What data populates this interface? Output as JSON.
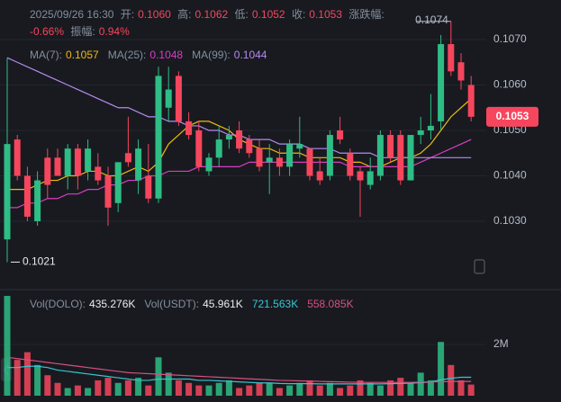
{
  "chart_data": {
    "type": "candlestick",
    "header": {
      "datetime": "2025/09/26 16:30",
      "fields": [
        {
          "label": "开:",
          "value": "0.1060"
        },
        {
          "label": "高:",
          "value": "0.1062"
        },
        {
          "label": "低:",
          "value": "0.1052"
        },
        {
          "label": "收:",
          "value": "0.1053"
        },
        {
          "label": "涨跌幅:",
          "value": "-0.66%"
        },
        {
          "label": "振幅:",
          "value": "0.94%"
        }
      ]
    },
    "ylim": [
      0.1016,
      0.1075
    ],
    "yticks": [
      {
        "value": 0.103,
        "label": "0.1030"
      },
      {
        "value": 0.104,
        "label": "0.1040"
      },
      {
        "value": 0.105,
        "label": "0.1050"
      },
      {
        "value": 0.106,
        "label": "0.1060"
      },
      {
        "value": 0.107,
        "label": "0.1070"
      }
    ],
    "up_color": "#2ebd85",
    "down_color": "#f6465d",
    "candles": {
      "open": [
        0.1026,
        0.1048,
        0.104,
        0.103,
        0.1044,
        0.1044,
        0.104,
        0.1046,
        0.1041,
        0.1042,
        0.104,
        0.1034,
        0.1045,
        0.1039,
        0.104,
        0.1035,
        0.1055,
        0.1062,
        0.1052,
        0.105,
        0.1041,
        0.1044,
        0.1048,
        0.105,
        0.1048,
        0.1046,
        0.1043,
        0.1044,
        0.1042,
        0.1046,
        0.1046,
        0.1041,
        0.104,
        0.105,
        0.1045,
        0.1041,
        0.1038,
        0.104,
        0.1049,
        0.1049,
        0.1039,
        0.1049,
        0.105,
        0.1052,
        0.1069,
        0.1065,
        0.106
      ],
      "high": [
        0.1066,
        0.1049,
        0.1042,
        0.1041,
        0.1046,
        0.1046,
        0.1047,
        0.1047,
        0.1048,
        0.1045,
        0.1042,
        0.1043,
        0.1053,
        0.1048,
        0.1047,
        0.1064,
        0.1064,
        0.1063,
        0.1054,
        0.1052,
        0.1045,
        0.1051,
        0.1051,
        0.1052,
        0.1049,
        0.1048,
        0.1047,
        0.1046,
        0.1048,
        0.1053,
        0.1046,
        0.1044,
        0.105,
        0.1053,
        0.1046,
        0.1042,
        0.1044,
        0.105,
        0.105,
        0.105,
        0.1049,
        0.1053,
        0.1058,
        0.1071,
        0.1074,
        0.1067,
        0.1062
      ],
      "low": [
        0.1021,
        0.1039,
        0.103,
        0.1029,
        0.1035,
        0.104,
        0.1037,
        0.1037,
        0.1039,
        0.1038,
        0.1029,
        0.1032,
        0.1042,
        0.1036,
        0.1034,
        0.1034,
        0.1052,
        0.1051,
        0.1048,
        0.1041,
        0.104,
        0.1042,
        0.1046,
        0.1045,
        0.1044,
        0.1041,
        0.1036,
        0.104,
        0.104,
        0.1044,
        0.1039,
        0.1038,
        0.1039,
        0.1047,
        0.1039,
        0.1031,
        0.1037,
        0.1039,
        0.1043,
        0.1038,
        0.1039,
        0.1047,
        0.1048,
        0.105,
        0.1062,
        0.1059,
        0.1052
      ],
      "close": [
        0.1047,
        0.104,
        0.1031,
        0.1039,
        0.1038,
        0.104,
        0.1046,
        0.104,
        0.1046,
        0.1039,
        0.1033,
        0.1043,
        0.1043,
        0.1046,
        0.1035,
        0.1062,
        0.1059,
        0.1052,
        0.1049,
        0.1042,
        0.1044,
        0.1048,
        0.1049,
        0.1046,
        0.1045,
        0.1042,
        0.1044,
        0.1042,
        0.1047,
        0.1047,
        0.104,
        0.1039,
        0.1049,
        0.1048,
        0.104,
        0.1039,
        0.1041,
        0.1049,
        0.1044,
        0.1039,
        0.1049,
        0.105,
        0.1051,
        0.1069,
        0.1063,
        0.1061,
        0.1053
      ]
    },
    "ma": [
      {
        "name": "MA(7):",
        "color": "#f0b90b",
        "value_label": "0.1057",
        "values": [
          0.1037,
          0.1037,
          0.1037,
          0.1038,
          0.1039,
          0.1039,
          0.104,
          0.104,
          0.1041,
          0.1041,
          0.104,
          0.104,
          0.1041,
          0.1042,
          0.1041,
          0.1043,
          0.1047,
          0.1049,
          0.1051,
          0.1052,
          0.1052,
          0.1051,
          0.105,
          0.1048,
          0.1047,
          0.1046,
          0.1046,
          0.1045,
          0.1045,
          0.1045,
          0.1044,
          0.1044,
          0.1044,
          0.1044,
          0.1043,
          0.1043,
          0.1042,
          0.1042,
          0.1043,
          0.1044,
          0.1044,
          0.1045,
          0.1047,
          0.105,
          0.1053,
          0.1055,
          0.1057
        ]
      },
      {
        "name": "MA(25):",
        "color": "#d63ec1",
        "value_label": "0.1048",
        "values": [
          0.1033,
          0.1033,
          0.1034,
          0.1034,
          0.1035,
          0.1035,
          0.1036,
          0.1036,
          0.1037,
          0.1037,
          0.1038,
          0.1038,
          0.1039,
          0.1039,
          0.104,
          0.104,
          0.1041,
          0.1041,
          0.1041,
          0.1042,
          0.1042,
          0.1042,
          0.1042,
          0.1042,
          0.1043,
          0.1043,
          0.1043,
          0.1043,
          0.1043,
          0.1043,
          0.1043,
          0.1043,
          0.1043,
          0.1043,
          0.1042,
          0.1042,
          0.1042,
          0.1042,
          0.1042,
          0.1042,
          0.1042,
          0.1043,
          0.1044,
          0.1045,
          0.1046,
          0.1047,
          0.1048
        ]
      },
      {
        "name": "MA(99):",
        "color": "#b689f0",
        "value_label": "0.1044",
        "values": [
          0.1066,
          0.1065,
          0.1064,
          0.1063,
          0.1062,
          0.1061,
          0.106,
          0.1059,
          0.1058,
          0.1057,
          0.1056,
          0.1055,
          0.1055,
          0.1054,
          0.1053,
          0.1053,
          0.1052,
          0.1052,
          0.1051,
          0.1051,
          0.105,
          0.105,
          0.1049,
          0.1049,
          0.1048,
          0.1048,
          0.1048,
          0.1047,
          0.1047,
          0.1047,
          0.1046,
          0.1046,
          0.1046,
          0.1045,
          0.1045,
          0.1045,
          0.1045,
          0.1044,
          0.1044,
          0.1044,
          0.1044,
          0.1044,
          0.1044,
          0.1044,
          0.1044,
          0.1044,
          0.1044
        ]
      }
    ],
    "high_marker": {
      "value": 0.1074,
      "label": "0.1074"
    },
    "low_marker": {
      "value": 0.1021,
      "label": "0.1021"
    },
    "last_price": {
      "value": 0.1053,
      "label": "0.1053"
    },
    "volume": {
      "ylim": [
        0,
        3900000
      ],
      "yticks": [
        {
          "value": 2000000,
          "label": "2M"
        }
      ],
      "values": [
        3900000,
        1400000,
        1700000,
        1200000,
        800000,
        500000,
        300000,
        400000,
        300000,
        600000,
        700000,
        500000,
        600000,
        700000,
        400000,
        1500000,
        900000,
        600000,
        500000,
        400000,
        400000,
        500000,
        600000,
        300000,
        400000,
        500000,
        500000,
        300000,
        400000,
        500000,
        600000,
        400000,
        500000,
        300000,
        400000,
        600000,
        500000,
        400000,
        600000,
        700000,
        500000,
        900000,
        600000,
        2100000,
        1200000,
        600000,
        435276
      ],
      "legend": [
        {
          "name": "Vol(DOLO):",
          "value": 435276,
          "value_label": "435.276K"
        },
        {
          "name": "Vol(USDT):",
          "value": 45961,
          "value_label": "45.961K"
        }
      ],
      "ma": [
        {
          "color": "#37c6d0",
          "value_label": "721.563K",
          "values": [
            1100000,
            1100000,
            1150000,
            1150000,
            1100000,
            1000000,
            950000,
            900000,
            850000,
            800000,
            750000,
            700000,
            650000,
            600000,
            600000,
            650000,
            650000,
            650000,
            650000,
            600000,
            600000,
            580000,
            560000,
            540000,
            520000,
            500000,
            500000,
            480000,
            470000,
            470000,
            470000,
            460000,
            460000,
            460000,
            460000,
            460000,
            460000,
            460000,
            470000,
            480000,
            490000,
            510000,
            540000,
            620000,
            680000,
            720000,
            721563
          ]
        },
        {
          "color": "#d8507f",
          "value_label": "558.085K",
          "values": [
            1500000,
            1450000,
            1400000,
            1350000,
            1300000,
            1250000,
            1200000,
            1150000,
            1100000,
            1050000,
            1000000,
            950000,
            900000,
            880000,
            860000,
            840000,
            820000,
            800000,
            780000,
            760000,
            740000,
            720000,
            700000,
            680000,
            660000,
            640000,
            620000,
            600000,
            590000,
            580000,
            570000,
            560000,
            550000,
            540000,
            530000,
            520000,
            520000,
            520000,
            520000,
            520000,
            520000,
            530000,
            540000,
            550000,
            555000,
            557000,
            558085
          ]
        }
      ]
    }
  }
}
